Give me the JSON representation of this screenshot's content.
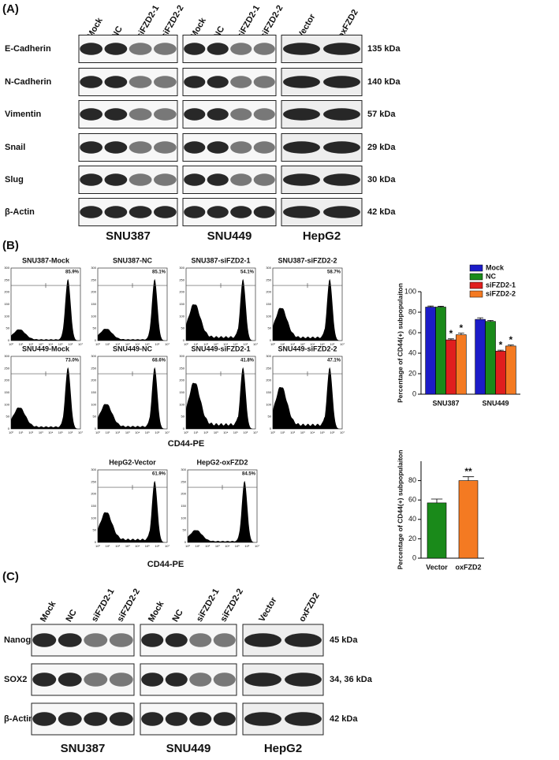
{
  "panel_a": {
    "label": "(A)",
    "groups": [
      {
        "lanes": [
          "Mock",
          "NC",
          "siFZD2-1",
          "siFZD2-2"
        ],
        "cell_line": "SNU387"
      },
      {
        "lanes": [
          "Mock",
          "NC",
          "siFZD2-1",
          "siFZD2-2"
        ],
        "cell_line": "SNU449"
      },
      {
        "lanes": [
          "Vector",
          "oxFZD2"
        ],
        "cell_line": "HepG2"
      }
    ],
    "proteins": [
      "E-Cadherin",
      "N-Cadherin",
      "Vimentin",
      "Snail",
      "Slug",
      "β-Actin"
    ],
    "sizes": [
      "135 kDa",
      "140 kDa",
      "57 kDa",
      "29 kDa",
      "30 kDa",
      "42 kDa"
    ]
  },
  "panel_b": {
    "label": "(B)",
    "x_axis_label": "CD44-PE",
    "hist_yticks": [
      0,
      50,
      100,
      150,
      200,
      250,
      300
    ],
    "hist_xticks": [
      "10⁰",
      "10¹",
      "10²",
      "10³",
      "10⁴",
      "10⁵",
      "10⁶",
      "10⁷"
    ],
    "histograms": [
      {
        "title": "SNU387-Mock",
        "gate": "85.9%"
      },
      {
        "title": "SNU387-NC",
        "gate": "85.1%"
      },
      {
        "title": "SNU387-siFZD2-1",
        "gate": "54.1%"
      },
      {
        "title": "SNU387-siFZD2-2",
        "gate": "58.7%"
      },
      {
        "title": "SNU449-Mock",
        "gate": "73.0%"
      },
      {
        "title": "SNU449-NC",
        "gate": "68.6%"
      },
      {
        "title": "SNU449-siFZD2-1",
        "gate": "41.8%"
      },
      {
        "title": "SNU449-siFZD2-2",
        "gate": "47.1%"
      },
      {
        "title": "HepG2-Vector",
        "gate": "61.9%"
      },
      {
        "title": "HepG2-oxFZD2",
        "gate": "84.5%"
      }
    ]
  },
  "chart_data": [
    {
      "type": "bar",
      "y_label": "Percentage of CD44(+) subpopulaiton",
      "categories": [
        "SNU387",
        "SNU449"
      ],
      "series": [
        {
          "name": "Mock",
          "color": "#1c1cc8",
          "values": [
            85,
            73
          ],
          "errors": [
            1,
            1.5
          ]
        },
        {
          "name": "NC",
          "color": "#1a8a1a",
          "values": [
            85,
            71
          ],
          "errors": [
            0.8,
            1
          ]
        },
        {
          "name": "siFZD2-1",
          "color": "#e01e1e",
          "values": [
            53,
            42
          ],
          "errors": [
            1,
            1
          ],
          "annotations": [
            "*",
            "*"
          ]
        },
        {
          "name": "siFZD2-2",
          "color": "#f47a22",
          "values": [
            58,
            47
          ],
          "errors": [
            1.5,
            1
          ],
          "annotations": [
            "*",
            "*"
          ]
        }
      ],
      "ylim": [
        0,
        100
      ],
      "yticks": [
        0,
        20,
        40,
        60,
        80,
        100
      ],
      "legend": "upper right"
    },
    {
      "type": "bar",
      "y_label": "Percentage of CD44(+) subpopulaiton",
      "categories": [
        "Vector",
        "oxFZD2"
      ],
      "values": [
        57,
        80
      ],
      "errors": [
        4,
        4
      ],
      "colors": [
        "#1a8a1a",
        "#f47a22"
      ],
      "annotations": [
        null,
        "**"
      ],
      "ylim": [
        0,
        100
      ],
      "yticks": [
        0,
        20,
        40,
        60,
        80
      ]
    }
  ],
  "panel_c": {
    "label": "(C)",
    "groups": [
      {
        "lanes": [
          "Mock",
          "NC",
          "siFZD2-1",
          "siFZD2-2"
        ],
        "cell_line": "SNU387"
      },
      {
        "lanes": [
          "Mock",
          "NC",
          "siFZD2-1",
          "siFZD2-2"
        ],
        "cell_line": "SNU449"
      },
      {
        "lanes": [
          "Vector",
          "oxFZD2"
        ],
        "cell_line": "HepG2"
      }
    ],
    "proteins": [
      "Nanog",
      "SOX2",
      "β-Actin"
    ],
    "sizes": [
      "45 kDa",
      "34, 36 kDa",
      "42 kDa"
    ]
  }
}
